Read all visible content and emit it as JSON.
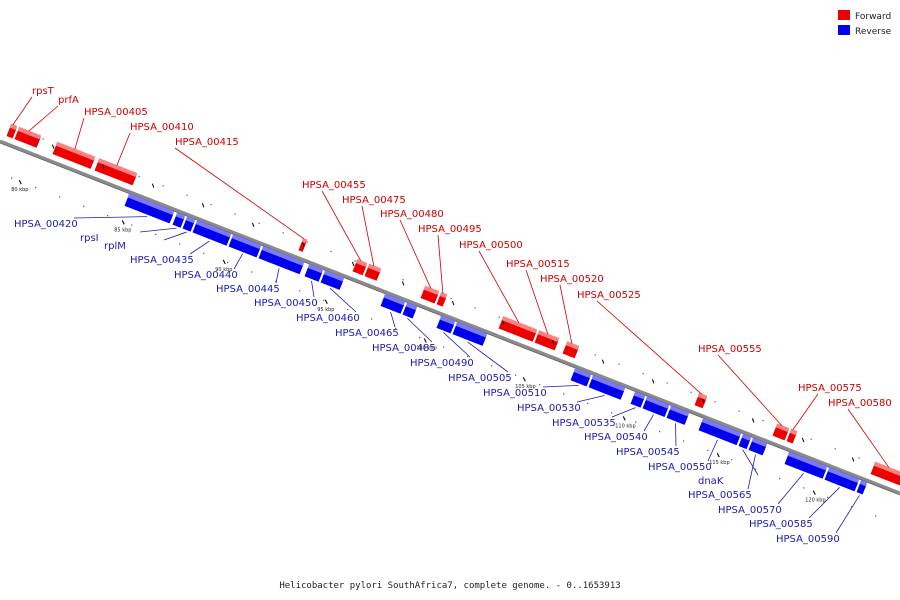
{
  "caption": "Helicobacter pylori SouthAfrica7, complete genome. - 0..1653913",
  "legend": [
    {
      "label": "Forward",
      "color": "#ee0000"
    },
    {
      "label": "Reverse",
      "color": "#0000ee"
    }
  ],
  "scale_ticks": [
    "80 kbp",
    "85 kbp",
    "90 kbp",
    "95 kbp",
    "100 kbp",
    "105 kbp",
    "110 kbp",
    "115 kbp",
    "120 kbp"
  ],
  "forward_genes": [
    "rpsT",
    "prfA",
    "HPSA_00405",
    "HPSA_00410",
    "HPSA_00415",
    "HPSA_00455",
    "HPSA_00475",
    "HPSA_00480",
    "HPSA_00495",
    "HPSA_00500",
    "HPSA_00515",
    "HPSA_00520",
    "HPSA_00525",
    "HPSA_00555",
    "HPSA_00575",
    "HPSA_00580"
  ],
  "reverse_genes": [
    "HPSA_00420",
    "rpsI",
    "rplM",
    "HPSA_00435",
    "HPSA_00440",
    "HPSA_00445",
    "HPSA_00450",
    "HPSA_00460",
    "HPSA_00465",
    "HPSA_00485",
    "HPSA_00490",
    "HPSA_00505",
    "HPSA_00510",
    "HPSA_00530",
    "HPSA_00535",
    "HPSA_00540",
    "HPSA_00545",
    "HPSA_00550",
    "dnaK",
    "HPSA_00565",
    "HPSA_00570",
    "HPSA_00585",
    "HPSA_00590"
  ]
}
